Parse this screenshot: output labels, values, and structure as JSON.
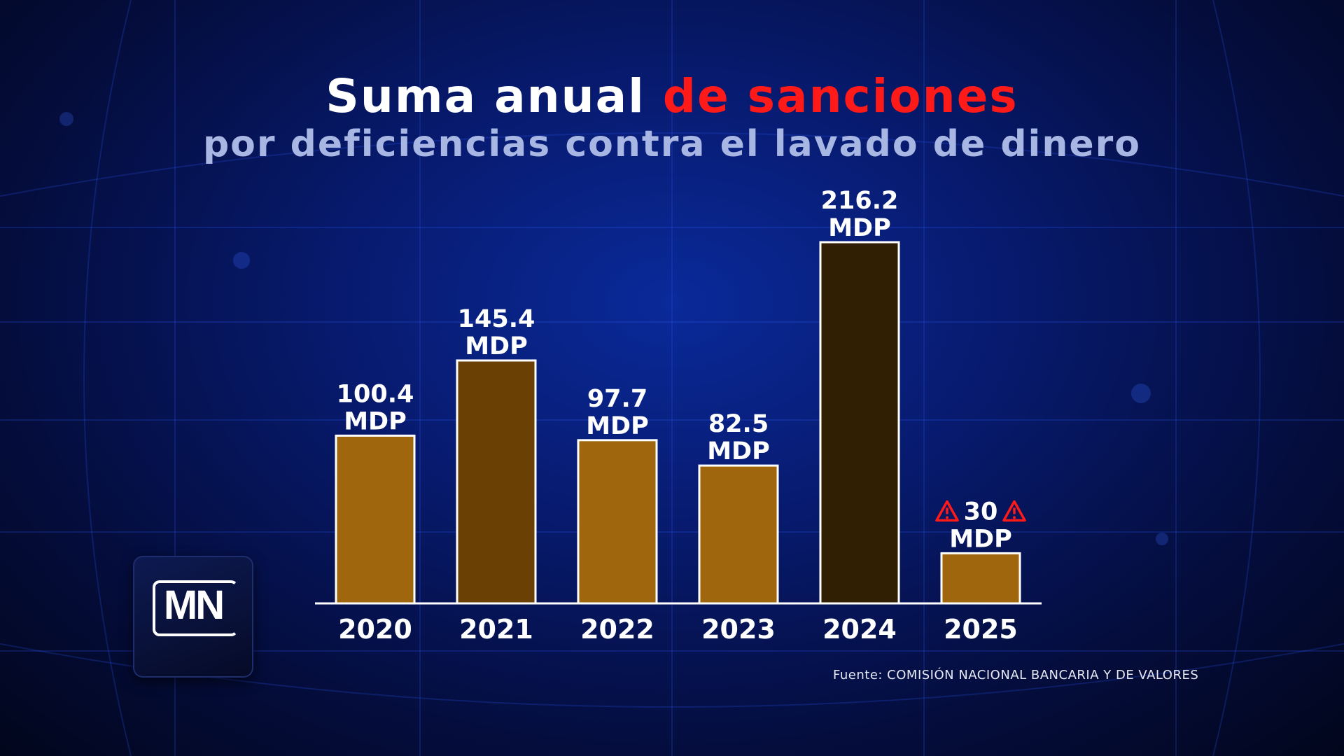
{
  "title": {
    "part1": "Suma anual",
    "part2": "de sanciones",
    "subtitle": "por deficiencias contra el lavado de dinero"
  },
  "logo_text": "MN",
  "source": "Fuente: COMISIÓN NACIONAL BANCARIA Y DE VALORES",
  "colors": {
    "accent_red": "#ff1a1a",
    "bar_default": "#a0660e",
    "bar_2021": "#6a4004",
    "bar_2024": "#301f03",
    "bar_border": "#ffffff"
  },
  "chart_data": {
    "type": "bar",
    "categories": [
      "2020",
      "2021",
      "2022",
      "2023",
      "2024",
      "2025"
    ],
    "values": [
      100.4,
      145.4,
      97.7,
      82.5,
      216.2,
      30
    ],
    "value_labels": [
      "100.4",
      "145.4",
      "97.7",
      "82.5",
      "216.2",
      "30"
    ],
    "unit_label": "MDP",
    "bar_colors": [
      "#a0660e",
      "#6a4004",
      "#a0660e",
      "#a0660e",
      "#301f03",
      "#a0660e"
    ],
    "warning_icon_on": "2025",
    "grid": false,
    "legend": "none"
  }
}
